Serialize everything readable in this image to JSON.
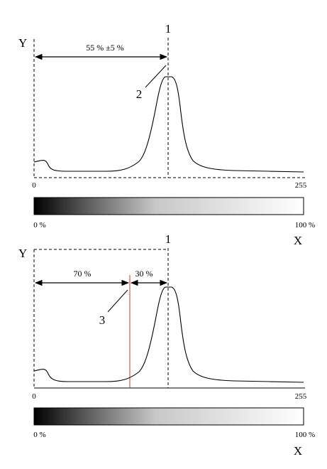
{
  "gradient": {
    "dark_color": "#000000",
    "light_color": "#ffffff"
  },
  "marker_color": "#c0392b",
  "top_panel": {
    "y_label": "Y",
    "callout_1": "1",
    "callout_2": "2",
    "dimension_label": "55 % ±5 %",
    "x_start": "0",
    "x_end": "255",
    "bar_start": "0 %",
    "bar_end": "100 %",
    "x_label": "X"
  },
  "bottom_panel": {
    "y_label": "Y",
    "callout_1": "1",
    "callout_3": "3",
    "dimension_left": "70 %",
    "dimension_right": "30 %",
    "x_start": "0",
    "x_end": "255",
    "bar_start": "0 %",
    "bar_end": "100 %",
    "x_label": "X"
  }
}
